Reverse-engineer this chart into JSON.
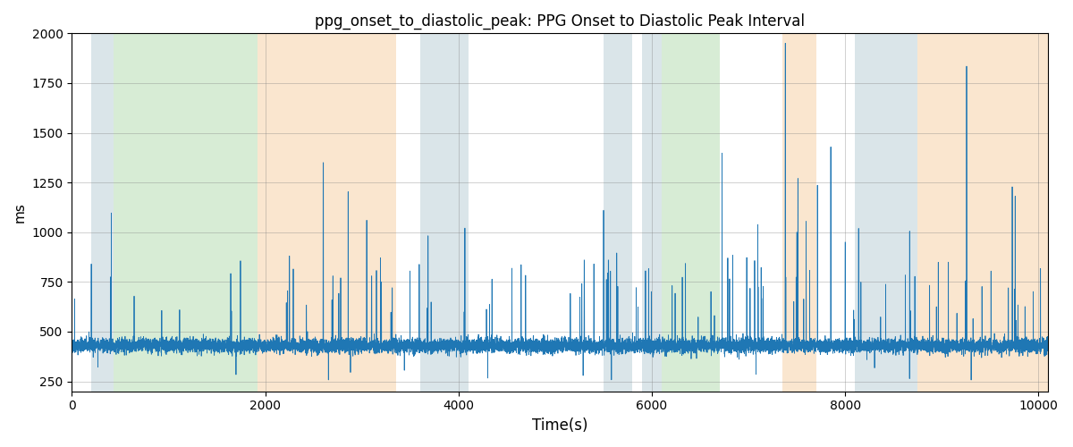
{
  "title": "ppg_onset_to_diastolic_peak: PPG Onset to Diastolic Peak Interval",
  "xlabel": "Time(s)",
  "ylabel": "ms",
  "xlim": [
    0,
    10100
  ],
  "ylim": [
    200,
    2000
  ],
  "yticks": [
    250,
    500,
    750,
    1000,
    1250,
    1500,
    1750,
    2000
  ],
  "xticks": [
    0,
    2000,
    4000,
    6000,
    8000,
    10000
  ],
  "background_bands": [
    {
      "xmin": 200,
      "xmax": 430,
      "color": "#aec6cf",
      "alpha": 0.45
    },
    {
      "xmin": 430,
      "xmax": 1920,
      "color": "#a8d5a2",
      "alpha": 0.45
    },
    {
      "xmin": 1920,
      "xmax": 3350,
      "color": "#f5c896",
      "alpha": 0.45
    },
    {
      "xmin": 3600,
      "xmax": 4100,
      "color": "#aec6cf",
      "alpha": 0.45
    },
    {
      "xmin": 4100,
      "xmax": 5500,
      "color": "#ffffff",
      "alpha": 0.0
    },
    {
      "xmin": 5500,
      "xmax": 5800,
      "color": "#aec6cf",
      "alpha": 0.45
    },
    {
      "xmin": 5900,
      "xmax": 6100,
      "color": "#aec6cf",
      "alpha": 0.45
    },
    {
      "xmin": 6100,
      "xmax": 6700,
      "color": "#a8d5a2",
      "alpha": 0.45
    },
    {
      "xmin": 6700,
      "xmax": 7350,
      "color": "#ffffff",
      "alpha": 0.0
    },
    {
      "xmin": 7350,
      "xmax": 7700,
      "color": "#f5c896",
      "alpha": 0.45
    },
    {
      "xmin": 7700,
      "xmax": 8100,
      "color": "#ffffff",
      "alpha": 0.0
    },
    {
      "xmin": 8100,
      "xmax": 8750,
      "color": "#aec6cf",
      "alpha": 0.45
    },
    {
      "xmin": 8750,
      "xmax": 10100,
      "color": "#f5c896",
      "alpha": 0.45
    }
  ],
  "signal_color": "#1f77b4",
  "signal_linewidth": 0.6,
  "seed": 42,
  "n_points": 12000,
  "base_value": 430,
  "noise_std": 18
}
